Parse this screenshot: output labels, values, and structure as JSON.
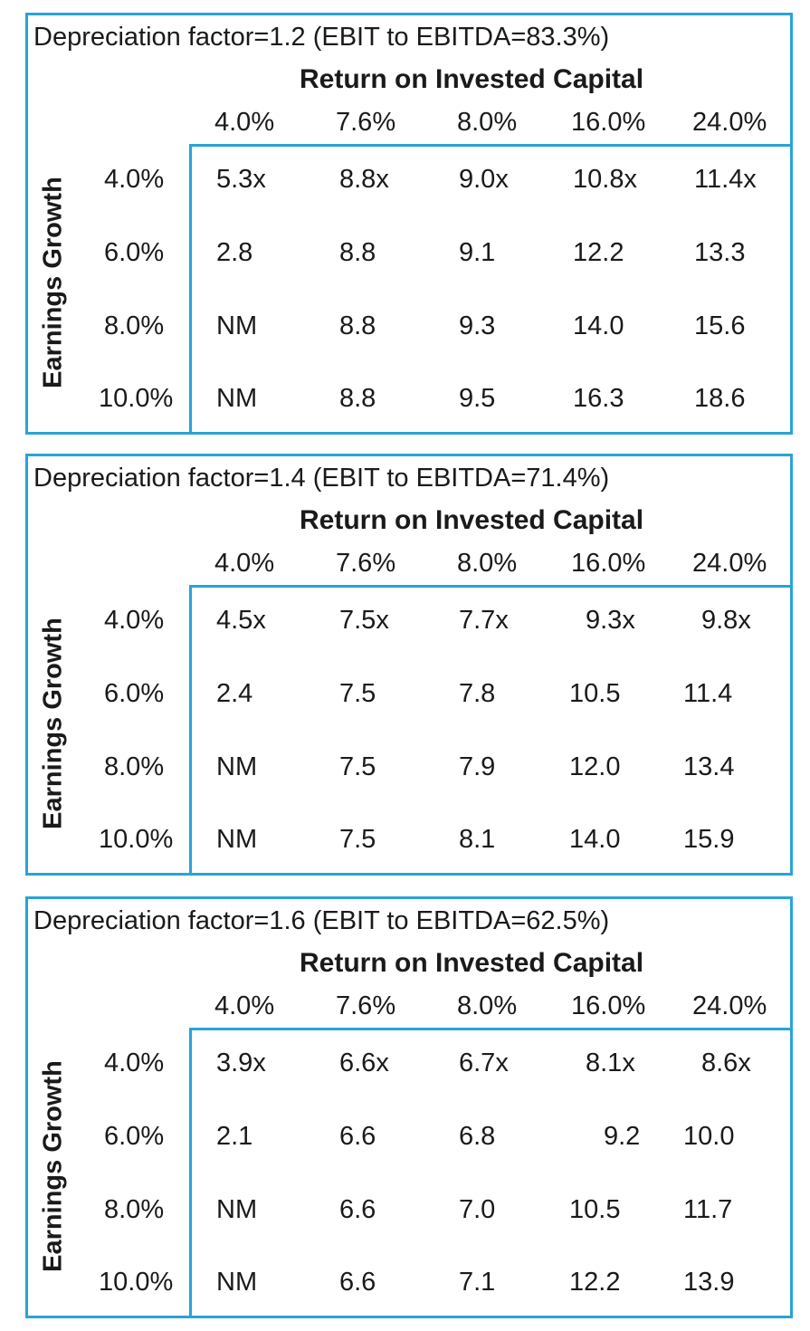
{
  "roic_label": "Return on Invested Capital",
  "growth_label": "Earnings Growth",
  "columns": [
    "4.0%",
    "7.6%",
    "8.0%",
    "16.0%",
    "24.0%"
  ],
  "rows": [
    "4.0%",
    "6.0%",
    "8.0%",
    "10.0%"
  ],
  "tables": [
    {
      "title": "Depreciation factor=1.2 (EBIT to EBITDA=83.3%)",
      "cells": [
        [
          "5.3x",
          "8.8x",
          "9.0x",
          "10.8x",
          "11.4x"
        ],
        [
          "2.8",
          "8.8",
          "9.1",
          "12.2",
          "13.3"
        ],
        [
          "NM",
          "8.8",
          "9.3",
          "14.0",
          "15.6"
        ],
        [
          "NM",
          "8.8",
          "9.5",
          "16.3",
          "18.6"
        ]
      ]
    },
    {
      "title": "Depreciation factor=1.4 (EBIT to EBITDA=71.4%)",
      "cells": [
        [
          "4.5x",
          "7.5x",
          "7.7x",
          "9.3x",
          "9.8x"
        ],
        [
          "2.4",
          "7.5",
          "7.8",
          "10.5",
          "11.4"
        ],
        [
          "NM",
          "7.5",
          "7.9",
          "12.0",
          "13.4"
        ],
        [
          "NM",
          "7.5",
          "8.1",
          "14.0",
          "15.9"
        ]
      ]
    },
    {
      "title": "Depreciation factor=1.6 (EBIT to EBITDA=62.5%)",
      "cells": [
        [
          "3.9x",
          "6.6x",
          "6.7x",
          "8.1x",
          "8.6x"
        ],
        [
          "2.1",
          "6.6",
          "6.8",
          "9.2",
          "10.0"
        ],
        [
          "NM",
          "6.6",
          "7.0",
          "10.5",
          "11.7"
        ],
        [
          "NM",
          "6.6",
          "7.1",
          "12.2",
          "13.9"
        ]
      ]
    }
  ]
}
